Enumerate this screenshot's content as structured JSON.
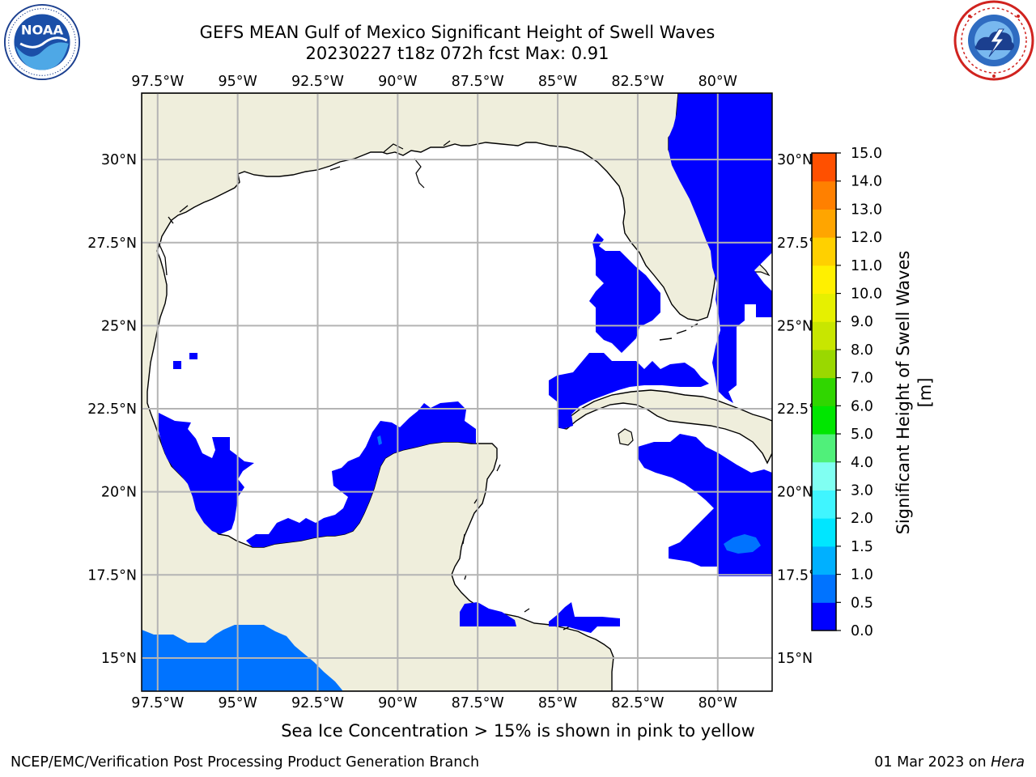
{
  "title": {
    "line1": "GEFS MEAN Gulf of Mexico Significant Height of Swell Waves",
    "line2": "20230227 t18z 072h fcst   Max: 0.91"
  },
  "logos": {
    "left": "noaa-logo",
    "left_text": "NOAA",
    "left_ring_text": "NATIONAL OCEANIC AND ATMOSPHERIC ADMINISTRATION · U.S. DEPARTMENT OF COMMERCE",
    "right": "nws-logo",
    "right_ring_text": "NATIONAL WEATHER SERVICE"
  },
  "map": {
    "lon_range": [
      -98,
      -78.3
    ],
    "lat_range": [
      14,
      32
    ],
    "lon_ticks": [
      "97.5°W",
      "95°W",
      "92.5°W",
      "90°W",
      "87.5°W",
      "85°W",
      "82.5°W",
      "80°W"
    ],
    "lon_tick_values": [
      -97.5,
      -95,
      -92.5,
      -90,
      -87.5,
      -85,
      -82.5,
      -80
    ],
    "lat_ticks": [
      "30°N",
      "27.5°N",
      "25°N",
      "22.5°N",
      "20°N",
      "17.5°N",
      "15°N"
    ],
    "lat_tick_values": [
      30,
      27.5,
      25,
      22.5,
      20,
      17.5,
      15
    ],
    "colors": {
      "land": "#efeedc",
      "grid": "#b4b4b4",
      "coast": "#000000"
    }
  },
  "colorbar": {
    "label": "Significant Height of Swell Waves [m]",
    "tick_labels": [
      "0.0",
      "0.5",
      "1.0",
      "1.5",
      "2.0",
      "3.0",
      "4.0",
      "5.0",
      "6.0",
      "7.0",
      "8.0",
      "9.0",
      "10.0",
      "11.0",
      "12.0",
      "13.0",
      "14.0",
      "15.0"
    ],
    "colors": [
      "#0000ff",
      "#0073ff",
      "#00b0ff",
      "#00e6ff",
      "#40f5ff",
      "#80fff2",
      "#50f07a",
      "#00e600",
      "#30d600",
      "#9ad800",
      "#c8e600",
      "#e6f000",
      "#fff000",
      "#ffd000",
      "#ffa500",
      "#ff8000",
      "#ff5000",
      "#ff1500"
    ]
  },
  "subtitle": "Sea Ice Concentration > 15% is shown in pink to yellow",
  "footer": {
    "left": "NCEP/EMC/Verification Post Processing Product Generation Branch",
    "right_date": "01 Mar 2023 on ",
    "right_host": "Hera"
  }
}
